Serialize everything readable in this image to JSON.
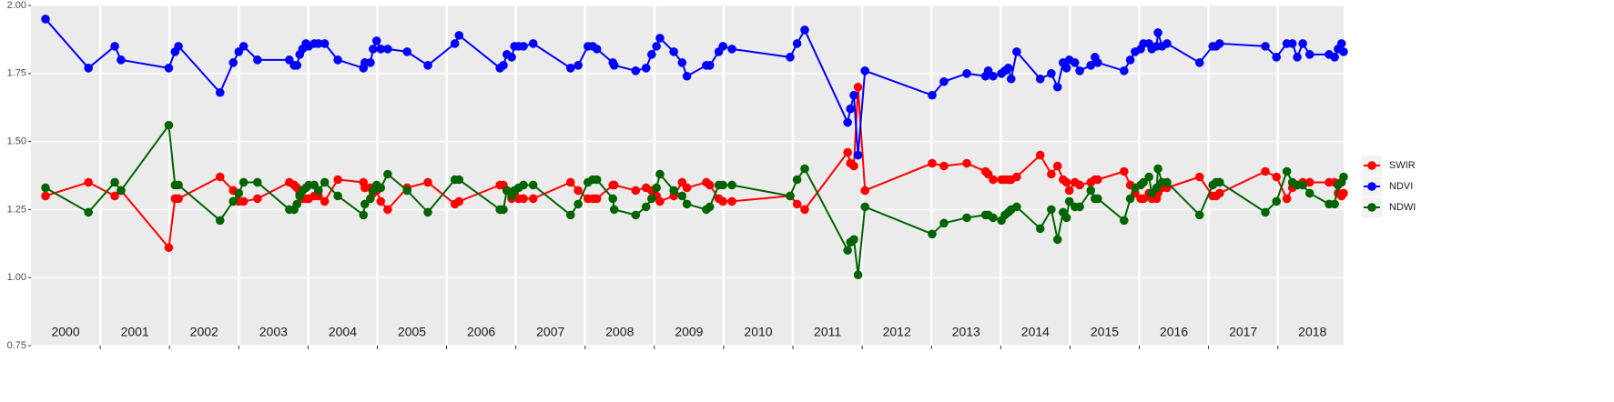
{
  "chart_data": {
    "type": "line",
    "x": [
      2000.21,
      2000.83,
      2001.21,
      2001.3,
      2001.99,
      2002.08,
      2002.13,
      2002.73,
      2002.92,
      2003.0,
      2003.07,
      2003.27,
      2003.73,
      2003.8,
      2003.84,
      2003.88,
      2003.92,
      2003.97,
      2004.01,
      2004.09,
      2004.15,
      2004.24,
      2004.43,
      2004.8,
      2004.82,
      2004.9,
      2004.94,
      2004.99,
      2005.05,
      2005.15,
      2005.43,
      2005.73,
      2006.12,
      2006.18,
      2006.77,
      2006.82,
      2006.87,
      2006.94,
      2006.98,
      2007.04,
      2007.11,
      2007.25,
      2007.79,
      2007.9,
      2008.04,
      2008.11,
      2008.17,
      2008.4,
      2008.42,
      2008.73,
      2008.88,
      2008.96,
      2009.03,
      2009.08,
      2009.28,
      2009.4,
      2009.47,
      2009.75,
      2009.8,
      2009.93,
      2009.99,
      2010.12,
      2010.96,
      2011.06,
      2011.17,
      2011.79,
      2011.83,
      2011.88,
      2011.94,
      2012.04,
      2013.01,
      2013.18,
      2013.51,
      2013.78,
      2013.82,
      2013.89,
      2014.01,
      2014.06,
      2014.11,
      2014.15,
      2014.23,
      2014.57,
      2014.73,
      2014.82,
      2014.9,
      2014.95,
      2014.99,
      2015.07,
      2015.14,
      2015.3,
      2015.36,
      2015.4,
      2015.78,
      2015.87,
      2015.94,
      2016.02,
      2016.06,
      2016.14,
      2016.18,
      2016.25,
      2016.27,
      2016.33,
      2016.4,
      2016.87,
      2017.06,
      2017.11,
      2017.16,
      2017.82,
      2017.98,
      2018.13,
      2018.21,
      2018.28,
      2018.36,
      2018.46,
      2018.74,
      2018.82,
      2018.87,
      2018.92,
      2018.95
    ],
    "series": [
      {
        "name": "SWIR",
        "color": "#ff0000",
        "values": [
          1.3,
          1.35,
          1.3,
          1.32,
          1.11,
          1.29,
          1.29,
          1.37,
          1.32,
          1.28,
          1.28,
          1.29,
          1.35,
          1.34,
          1.33,
          1.31,
          1.29,
          1.29,
          1.29,
          1.3,
          1.3,
          1.28,
          1.36,
          1.35,
          1.33,
          1.33,
          1.31,
          1.32,
          1.28,
          1.25,
          1.33,
          1.35,
          1.27,
          1.28,
          1.34,
          1.34,
          1.32,
          1.29,
          1.31,
          1.29,
          1.29,
          1.29,
          1.35,
          1.32,
          1.29,
          1.29,
          1.29,
          1.34,
          1.34,
          1.32,
          1.33,
          1.32,
          1.3,
          1.28,
          1.3,
          1.35,
          1.33,
          1.35,
          1.34,
          1.29,
          1.28,
          1.28,
          1.3,
          1.27,
          1.25,
          1.46,
          1.42,
          1.41,
          1.7,
          1.32,
          1.42,
          1.41,
          1.42,
          1.39,
          1.38,
          1.36,
          1.36,
          1.36,
          1.36,
          1.36,
          1.37,
          1.45,
          1.38,
          1.41,
          1.36,
          1.35,
          1.32,
          1.35,
          1.34,
          1.35,
          1.36,
          1.36,
          1.39,
          1.34,
          1.31,
          1.29,
          1.29,
          1.31,
          1.29,
          1.29,
          1.31,
          1.33,
          1.33,
          1.37,
          1.3,
          1.3,
          1.31,
          1.39,
          1.37,
          1.29,
          1.33,
          1.34,
          1.35,
          1.35,
          1.35,
          1.35,
          1.31,
          1.3,
          1.31
        ]
      },
      {
        "name": "NDVI",
        "color": "#0000ff",
        "values": [
          1.95,
          1.77,
          1.85,
          1.8,
          1.77,
          1.83,
          1.85,
          1.68,
          1.79,
          1.83,
          1.85,
          1.8,
          1.8,
          1.78,
          1.78,
          1.82,
          1.84,
          1.86,
          1.85,
          1.86,
          1.86,
          1.86,
          1.8,
          1.77,
          1.79,
          1.79,
          1.84,
          1.87,
          1.84,
          1.84,
          1.83,
          1.78,
          1.86,
          1.89,
          1.77,
          1.78,
          1.82,
          1.81,
          1.85,
          1.85,
          1.85,
          1.86,
          1.77,
          1.78,
          1.85,
          1.85,
          1.84,
          1.79,
          1.78,
          1.76,
          1.77,
          1.82,
          1.85,
          1.88,
          1.83,
          1.79,
          1.74,
          1.78,
          1.78,
          1.83,
          1.85,
          1.84,
          1.81,
          1.86,
          1.91,
          1.57,
          1.62,
          1.67,
          1.45,
          1.76,
          1.67,
          1.72,
          1.75,
          1.74,
          1.76,
          1.74,
          1.75,
          1.76,
          1.77,
          1.73,
          1.83,
          1.73,
          1.75,
          1.7,
          1.79,
          1.77,
          1.8,
          1.79,
          1.76,
          1.78,
          1.81,
          1.79,
          1.76,
          1.8,
          1.83,
          1.84,
          1.86,
          1.86,
          1.84,
          1.85,
          1.9,
          1.85,
          1.86,
          1.79,
          1.85,
          1.85,
          1.86,
          1.85,
          1.81,
          1.86,
          1.86,
          1.81,
          1.86,
          1.82,
          1.82,
          1.81,
          1.84,
          1.86,
          1.83
        ]
      },
      {
        "name": "NDWI",
        "color": "#006400",
        "values": [
          1.33,
          1.24,
          1.35,
          1.32,
          1.56,
          1.34,
          1.34,
          1.21,
          1.28,
          1.31,
          1.35,
          1.35,
          1.25,
          1.25,
          1.27,
          1.3,
          1.32,
          1.33,
          1.34,
          1.34,
          1.32,
          1.35,
          1.3,
          1.23,
          1.27,
          1.29,
          1.32,
          1.34,
          1.33,
          1.38,
          1.32,
          1.24,
          1.36,
          1.36,
          1.25,
          1.25,
          1.32,
          1.3,
          1.32,
          1.33,
          1.34,
          1.34,
          1.23,
          1.27,
          1.35,
          1.36,
          1.36,
          1.29,
          1.25,
          1.23,
          1.26,
          1.29,
          1.33,
          1.38,
          1.32,
          1.3,
          1.27,
          1.25,
          1.26,
          1.34,
          1.34,
          1.34,
          1.3,
          1.36,
          1.4,
          1.1,
          1.13,
          1.14,
          1.01,
          1.26,
          1.16,
          1.2,
          1.22,
          1.23,
          1.23,
          1.22,
          1.21,
          1.23,
          1.24,
          1.25,
          1.26,
          1.18,
          1.25,
          1.14,
          1.24,
          1.22,
          1.28,
          1.26,
          1.26,
          1.32,
          1.29,
          1.29,
          1.21,
          1.29,
          1.33,
          1.34,
          1.35,
          1.37,
          1.31,
          1.33,
          1.4,
          1.35,
          1.35,
          1.23,
          1.34,
          1.35,
          1.35,
          1.24,
          1.28,
          1.39,
          1.35,
          1.34,
          1.34,
          1.31,
          1.27,
          1.27,
          1.34,
          1.35,
          1.37
        ]
      }
    ],
    "xlim": [
      2000,
      2018.95
    ],
    "xticks": [
      2001,
      2002,
      2003,
      2004,
      2005,
      2006,
      2007,
      2008,
      2009,
      2010,
      2011,
      2012,
      2013,
      2014,
      2015,
      2016,
      2017,
      2018
    ],
    "xlabels": [
      {
        "value": 2000.5,
        "label": "2000"
      },
      {
        "value": 2001.5,
        "label": "2001"
      },
      {
        "value": 2002.5,
        "label": "2002"
      },
      {
        "value": 2003.5,
        "label": "2003"
      },
      {
        "value": 2004.5,
        "label": "2004"
      },
      {
        "value": 2005.5,
        "label": "2005"
      },
      {
        "value": 2006.5,
        "label": "2006"
      },
      {
        "value": 2007.5,
        "label": "2007"
      },
      {
        "value": 2008.5,
        "label": "2008"
      },
      {
        "value": 2009.5,
        "label": "2009"
      },
      {
        "value": 2010.5,
        "label": "2010"
      },
      {
        "value": 2011.5,
        "label": "2011"
      },
      {
        "value": 2012.5,
        "label": "2012"
      },
      {
        "value": 2013.5,
        "label": "2013"
      },
      {
        "value": 2014.5,
        "label": "2014"
      },
      {
        "value": 2015.5,
        "label": "2015"
      },
      {
        "value": 2016.5,
        "label": "2016"
      },
      {
        "value": 2017.5,
        "label": "2017"
      },
      {
        "value": 2018.5,
        "label": "2018"
      }
    ],
    "ylim": [
      0.75,
      2.0
    ],
    "yticks": [
      {
        "value": 0.75,
        "label": "0.75"
      },
      {
        "value": 1.0,
        "label": "1.00"
      },
      {
        "value": 1.25,
        "label": "1.25"
      },
      {
        "value": 1.5,
        "label": "1.50"
      },
      {
        "value": 1.75,
        "label": "1.75"
      },
      {
        "value": 2.0,
        "label": "2.00"
      }
    ],
    "grid": true,
    "legend": "right"
  }
}
